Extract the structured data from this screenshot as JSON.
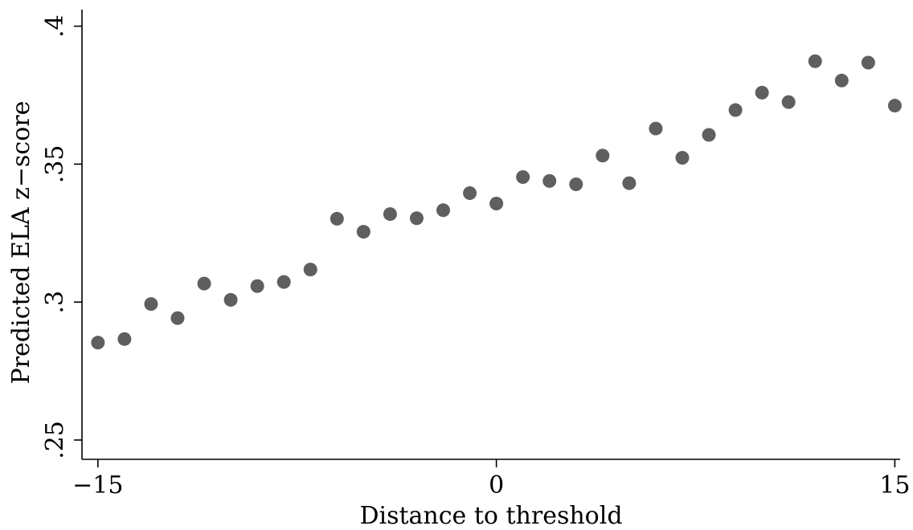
{
  "chart_data": {
    "type": "scatter",
    "title": "",
    "xlabel": "Distance to threshold",
    "ylabel": "Predicted ELA z−score",
    "xlim": [
      -15.6,
      15.2
    ],
    "ylim": [
      0.243,
      0.406
    ],
    "xticks": [
      -15,
      0,
      15
    ],
    "xtick_labels": [
      "−15",
      "0",
      "15"
    ],
    "yticks": [
      0.25,
      0.3,
      0.35,
      0.4
    ],
    "ytick_labels": [
      ".25",
      ".3",
      ".35",
      ".4"
    ],
    "grid": false,
    "legend": "none",
    "point_color": "#5f5f5f",
    "series": [
      {
        "x": [
          -15,
          -14,
          -13,
          -12,
          -11,
          -10,
          -9,
          -8,
          -7,
          -6,
          -5,
          -4,
          -3,
          -2,
          -1,
          0,
          1,
          2,
          3,
          4,
          5,
          6,
          7,
          8,
          9,
          10,
          11,
          12,
          13,
          14,
          15
        ],
        "y": [
          0.2853,
          0.2866,
          0.2993,
          0.2942,
          0.3067,
          0.3008,
          0.3058,
          0.3073,
          0.3118,
          0.3302,
          0.3255,
          0.3319,
          0.3304,
          0.3333,
          0.3395,
          0.3357,
          0.3453,
          0.3439,
          0.3427,
          0.3531,
          0.3431,
          0.3629,
          0.3523,
          0.3606,
          0.3696,
          0.3759,
          0.3725,
          0.3873,
          0.3803,
          0.3868,
          0.3712
        ]
      }
    ]
  }
}
